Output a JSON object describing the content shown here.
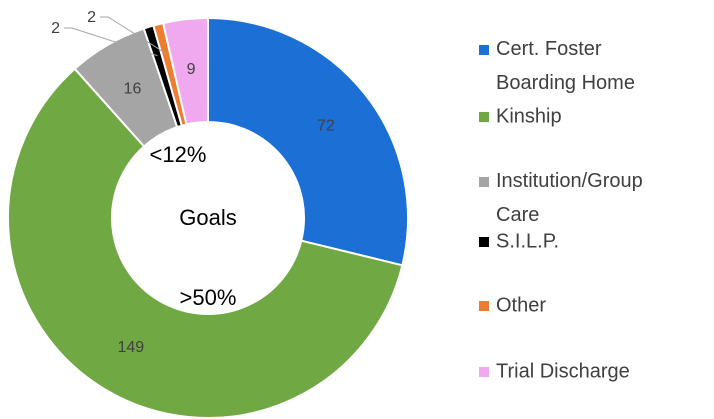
{
  "chart_data": {
    "type": "donut",
    "annotations": [
      "Goals",
      "<12%",
      ">50%"
    ],
    "series": [
      {
        "name": "Cert. Foster Boarding Home",
        "color": "#1b6fd5",
        "value": 72
      },
      {
        "name": "Kinship",
        "color": "#70a843",
        "value": 149
      },
      {
        "name": "Institution/Group Care",
        "color": "#a5a5a5",
        "value": 16
      },
      {
        "name": "S.I.L.P.",
        "color": "#000000",
        "value": 2
      },
      {
        "name": "Other",
        "color": "#ed7d31",
        "value": 2
      },
      {
        "name": "Trial Discharge",
        "color": "#f0a8ee",
        "value": 9
      }
    ],
    "legend": "right"
  }
}
